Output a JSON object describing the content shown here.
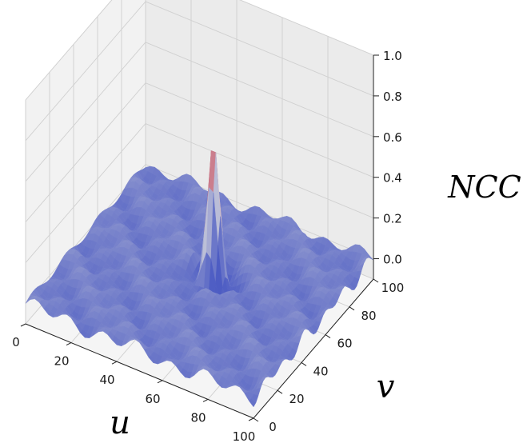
{
  "chart_data": {
    "type": "surface3d",
    "title": "",
    "xlabel": "u",
    "ylabel": "v",
    "zlabel": "NCC",
    "xlim": [
      0,
      100
    ],
    "ylim": [
      0,
      100
    ],
    "zlim": [
      -0.1,
      1.0
    ],
    "x_ticks": [
      "0",
      "20",
      "40",
      "60",
      "80",
      "100"
    ],
    "y_ticks": [
      "0",
      "20",
      "40",
      "60",
      "80",
      "100"
    ],
    "z_ticks": [
      "0.0",
      "0.2",
      "0.4",
      "0.6",
      "0.8",
      "1.0"
    ],
    "colormap": "coolwarm",
    "grid": true,
    "surface": {
      "baseline": 0.0,
      "noise_amplitude": 0.03,
      "peak": {
        "u": 53,
        "v": 56,
        "value": 0.66,
        "width": 2.4
      },
      "trough_ring": {
        "radius": 7,
        "depth": -0.08
      }
    }
  },
  "colors": {
    "pane_bg": "#f2f2f2",
    "grid": "#d0d0d0",
    "surface_low": "#6a8ee6",
    "surface_high": "#c52f2f"
  }
}
